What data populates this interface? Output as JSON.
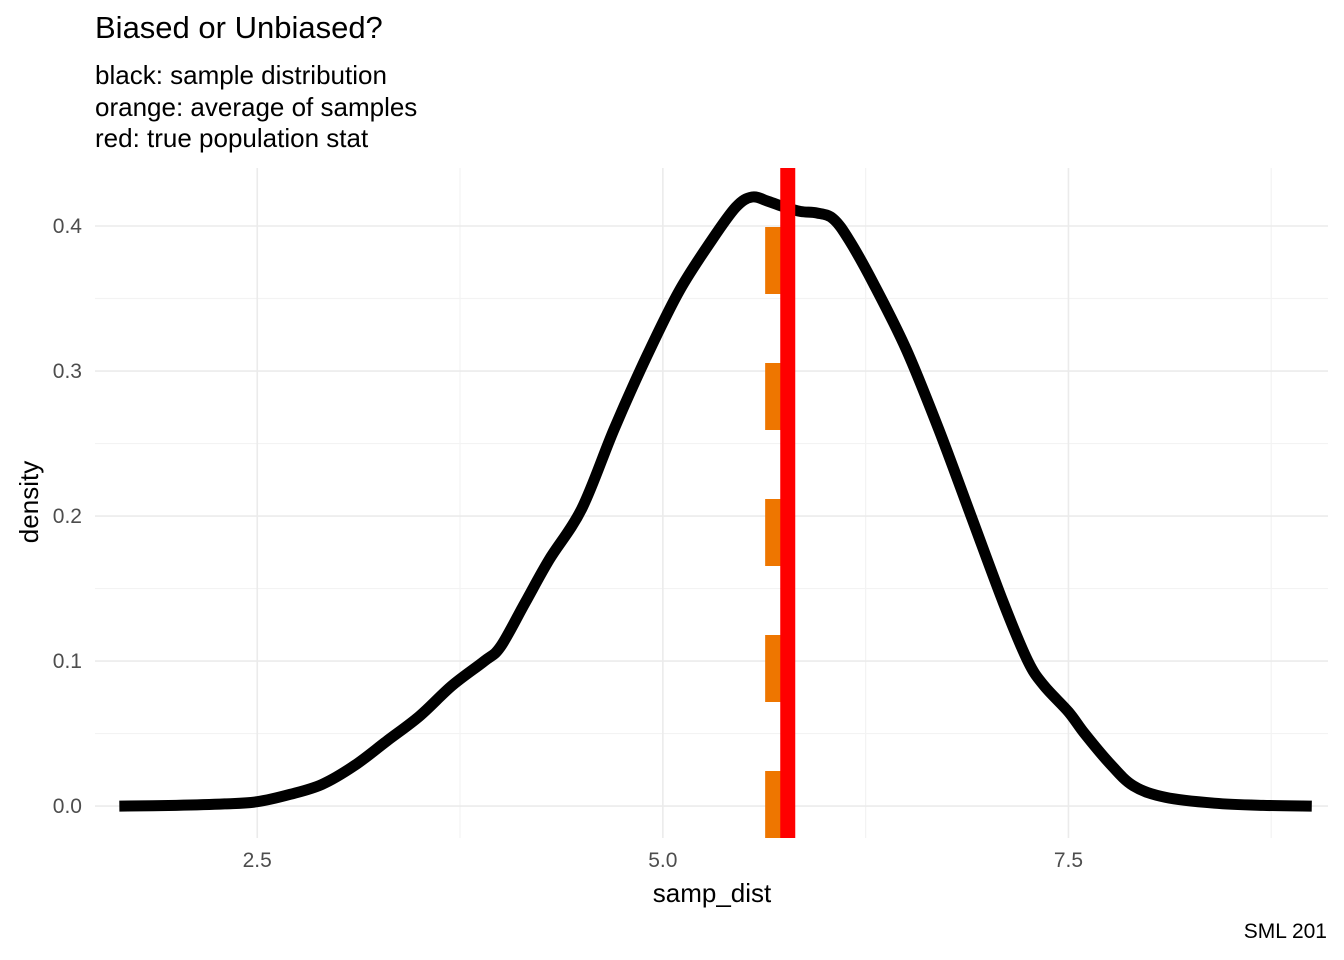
{
  "title": "Biased or Unbiased?",
  "subtitle_lines": [
    "black: sample distribution",
    "orange: average of samples",
    "red: true population stat"
  ],
  "caption": "SML 201",
  "colors": {
    "density": "#000000",
    "sample_mean": "#EE7600",
    "true_stat": "#FF0000",
    "grid_major": "#EBEBEB",
    "grid_minor": "#F3F3F3",
    "tick_text": "#4D4D4D"
  },
  "chart_data": {
    "type": "line",
    "xlabel": "samp_dist",
    "ylabel": "density",
    "xlim": [
      1.5,
      9.1
    ],
    "ylim": [
      -0.022,
      0.44
    ],
    "x_ticks": [
      {
        "value": 2.5,
        "label": "2.5"
      },
      {
        "value": 5.0,
        "label": "5.0"
      },
      {
        "value": 7.5,
        "label": "7.5"
      }
    ],
    "y_ticks": [
      {
        "value": 0.0,
        "label": "0.0"
      },
      {
        "value": 0.1,
        "label": "0.1"
      },
      {
        "value": 0.2,
        "label": "0.2"
      },
      {
        "value": 0.3,
        "label": "0.3"
      },
      {
        "value": 0.4,
        "label": "0.4"
      }
    ],
    "grid": true,
    "series": [
      {
        "x": [
          1.65,
          2.0,
          2.3,
          2.5,
          2.7,
          2.9,
          3.1,
          3.3,
          3.5,
          3.7,
          3.9,
          4.0,
          4.15,
          4.3,
          4.5,
          4.7,
          4.9,
          5.1,
          5.3,
          5.45,
          5.55,
          5.65,
          5.75,
          5.85,
          5.95,
          6.05,
          6.15,
          6.3,
          6.5,
          6.7,
          6.9,
          7.1,
          7.25,
          7.35,
          7.5,
          7.6,
          7.75,
          7.9,
          8.1,
          8.4,
          8.7,
          9.0
        ],
        "y": [
          0.0,
          0.0005,
          0.0015,
          0.003,
          0.008,
          0.015,
          0.028,
          0.045,
          0.062,
          0.083,
          0.1,
          0.11,
          0.14,
          0.17,
          0.205,
          0.26,
          0.31,
          0.355,
          0.39,
          0.413,
          0.42,
          0.417,
          0.413,
          0.41,
          0.409,
          0.405,
          0.39,
          0.36,
          0.315,
          0.26,
          0.2,
          0.14,
          0.1,
          0.083,
          0.065,
          0.05,
          0.03,
          0.014,
          0.006,
          0.002,
          0.0005,
          0.0
        ]
      }
    ],
    "vlines": [
      {
        "x": 5.68,
        "style": "dashed",
        "color_key": "sample_mean"
      },
      {
        "x": 5.77,
        "style": "solid",
        "color_key": "true_stat"
      }
    ]
  }
}
